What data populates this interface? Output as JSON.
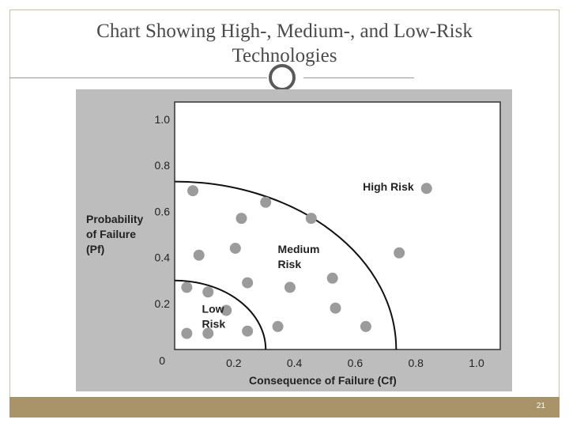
{
  "slide": {
    "title": "Chart Showing High-, Medium-, and Low-Risk\nTechnologies",
    "page_number": "21"
  },
  "chart_data": {
    "type": "scatter",
    "title": "",
    "xlabel": "Consequence of Failure (Cf)",
    "ylabel": [
      "Probability",
      "of Failure",
      "(Pf)"
    ],
    "xlim": [
      0,
      1.0
    ],
    "ylim": [
      0,
      1.0
    ],
    "x_ticks": [
      {
        "value": 0.2,
        "label": "0.2"
      },
      {
        "value": 0.4,
        "label": "0.4"
      },
      {
        "value": 0.6,
        "label": "0.6"
      },
      {
        "value": 0.8,
        "label": "0.8"
      },
      {
        "value": 1.0,
        "label": "1.0"
      }
    ],
    "y_ticks": [
      {
        "value": 0.2,
        "label": "0.2"
      },
      {
        "value": 0.4,
        "label": "0.4"
      },
      {
        "value": 0.6,
        "label": "0.6"
      },
      {
        "value": 0.8,
        "label": "0.8"
      },
      {
        "value": 1.0,
        "label": "1.0"
      }
    ],
    "origin_label": "0",
    "grid": false,
    "point_color": "#9b9b9b",
    "boundaries": [
      {
        "name": "low-risk-boundary",
        "radius": 0.3
      },
      {
        "name": "medium-risk-boundary",
        "radius": 0.73
      }
    ],
    "regions": [
      {
        "lines": [
          "Low",
          "Risk"
        ],
        "x": 0.09,
        "y": 0.16
      },
      {
        "lines": [
          "Medium",
          "Risk"
        ],
        "x": 0.34,
        "y": 0.42
      },
      {
        "lines": [
          "High Risk"
        ],
        "x": 0.62,
        "y": 0.69
      }
    ],
    "points": [
      {
        "x": 0.06,
        "y": 0.69
      },
      {
        "x": 0.3,
        "y": 0.64
      },
      {
        "x": 0.22,
        "y": 0.57
      },
      {
        "x": 0.45,
        "y": 0.57
      },
      {
        "x": 0.83,
        "y": 0.7
      },
      {
        "x": 0.2,
        "y": 0.44
      },
      {
        "x": 0.08,
        "y": 0.41
      },
      {
        "x": 0.74,
        "y": 0.42
      },
      {
        "x": 0.52,
        "y": 0.31
      },
      {
        "x": 0.24,
        "y": 0.29
      },
      {
        "x": 0.38,
        "y": 0.27
      },
      {
        "x": 0.04,
        "y": 0.27
      },
      {
        "x": 0.11,
        "y": 0.25
      },
      {
        "x": 0.53,
        "y": 0.18
      },
      {
        "x": 0.17,
        "y": 0.17
      },
      {
        "x": 0.34,
        "y": 0.1
      },
      {
        "x": 0.63,
        "y": 0.1
      },
      {
        "x": 0.04,
        "y": 0.07
      },
      {
        "x": 0.11,
        "y": 0.07
      },
      {
        "x": 0.24,
        "y": 0.08
      }
    ]
  }
}
